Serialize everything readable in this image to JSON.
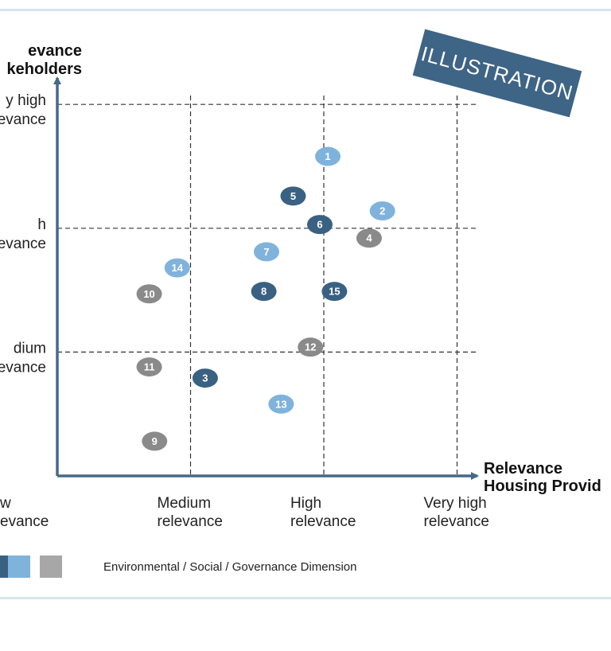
{
  "chart_data": {
    "type": "scatter",
    "x_axis_title": [
      "Relevance",
      "Housing Provid"
    ],
    "y_axis_title": [
      "evance",
      "keholders"
    ],
    "x_ticks": [
      [
        "w",
        "evance"
      ],
      [
        "Medium",
        "relevance"
      ],
      [
        "High",
        "relevance"
      ],
      [
        "Very high",
        "relevance"
      ]
    ],
    "y_ticks": [
      [
        "y high",
        "evance"
      ],
      [
        "h",
        "evance"
      ],
      [
        "dium",
        "evance"
      ]
    ],
    "xlim": [
      0,
      3.2
    ],
    "ylim": [
      0,
      3.2
    ],
    "grid": true,
    "colors": {
      "dark": "#3a6182",
      "light": "#7fb3dc",
      "grey": "#8a8a8a"
    },
    "points": [
      {
        "label": "1",
        "x": 2.03,
        "y": 2.58,
        "color": "light"
      },
      {
        "label": "2",
        "x": 2.44,
        "y": 2.14,
        "color": "light"
      },
      {
        "label": "3",
        "x": 1.11,
        "y": 0.79,
        "color": "dark"
      },
      {
        "label": "4",
        "x": 2.34,
        "y": 1.92,
        "color": "grey"
      },
      {
        "label": "5",
        "x": 1.77,
        "y": 2.26,
        "color": "dark"
      },
      {
        "label": "6",
        "x": 1.97,
        "y": 2.03,
        "color": "dark"
      },
      {
        "label": "7",
        "x": 1.57,
        "y": 1.81,
        "color": "light"
      },
      {
        "label": "8",
        "x": 1.55,
        "y": 1.49,
        "color": "dark"
      },
      {
        "label": "9",
        "x": 0.73,
        "y": 0.28,
        "color": "grey"
      },
      {
        "label": "10",
        "x": 0.69,
        "y": 1.47,
        "color": "grey"
      },
      {
        "label": "11",
        "x": 0.69,
        "y": 0.88,
        "color": "grey"
      },
      {
        "label": "12",
        "x": 1.9,
        "y": 1.04,
        "color": "grey"
      },
      {
        "label": "13",
        "x": 1.68,
        "y": 0.58,
        "color": "light"
      },
      {
        "label": "14",
        "x": 0.9,
        "y": 1.68,
        "color": "light"
      },
      {
        "label": "15",
        "x": 2.08,
        "y": 1.49,
        "color": "dark"
      }
    ]
  },
  "stamp": "ILLUSTRATION",
  "legend": {
    "swatch_colors": [
      "#3a6182",
      "#7fb3dc",
      "#a7a7a7"
    ],
    "text": "Environmental / Social / Governance Dimension"
  }
}
